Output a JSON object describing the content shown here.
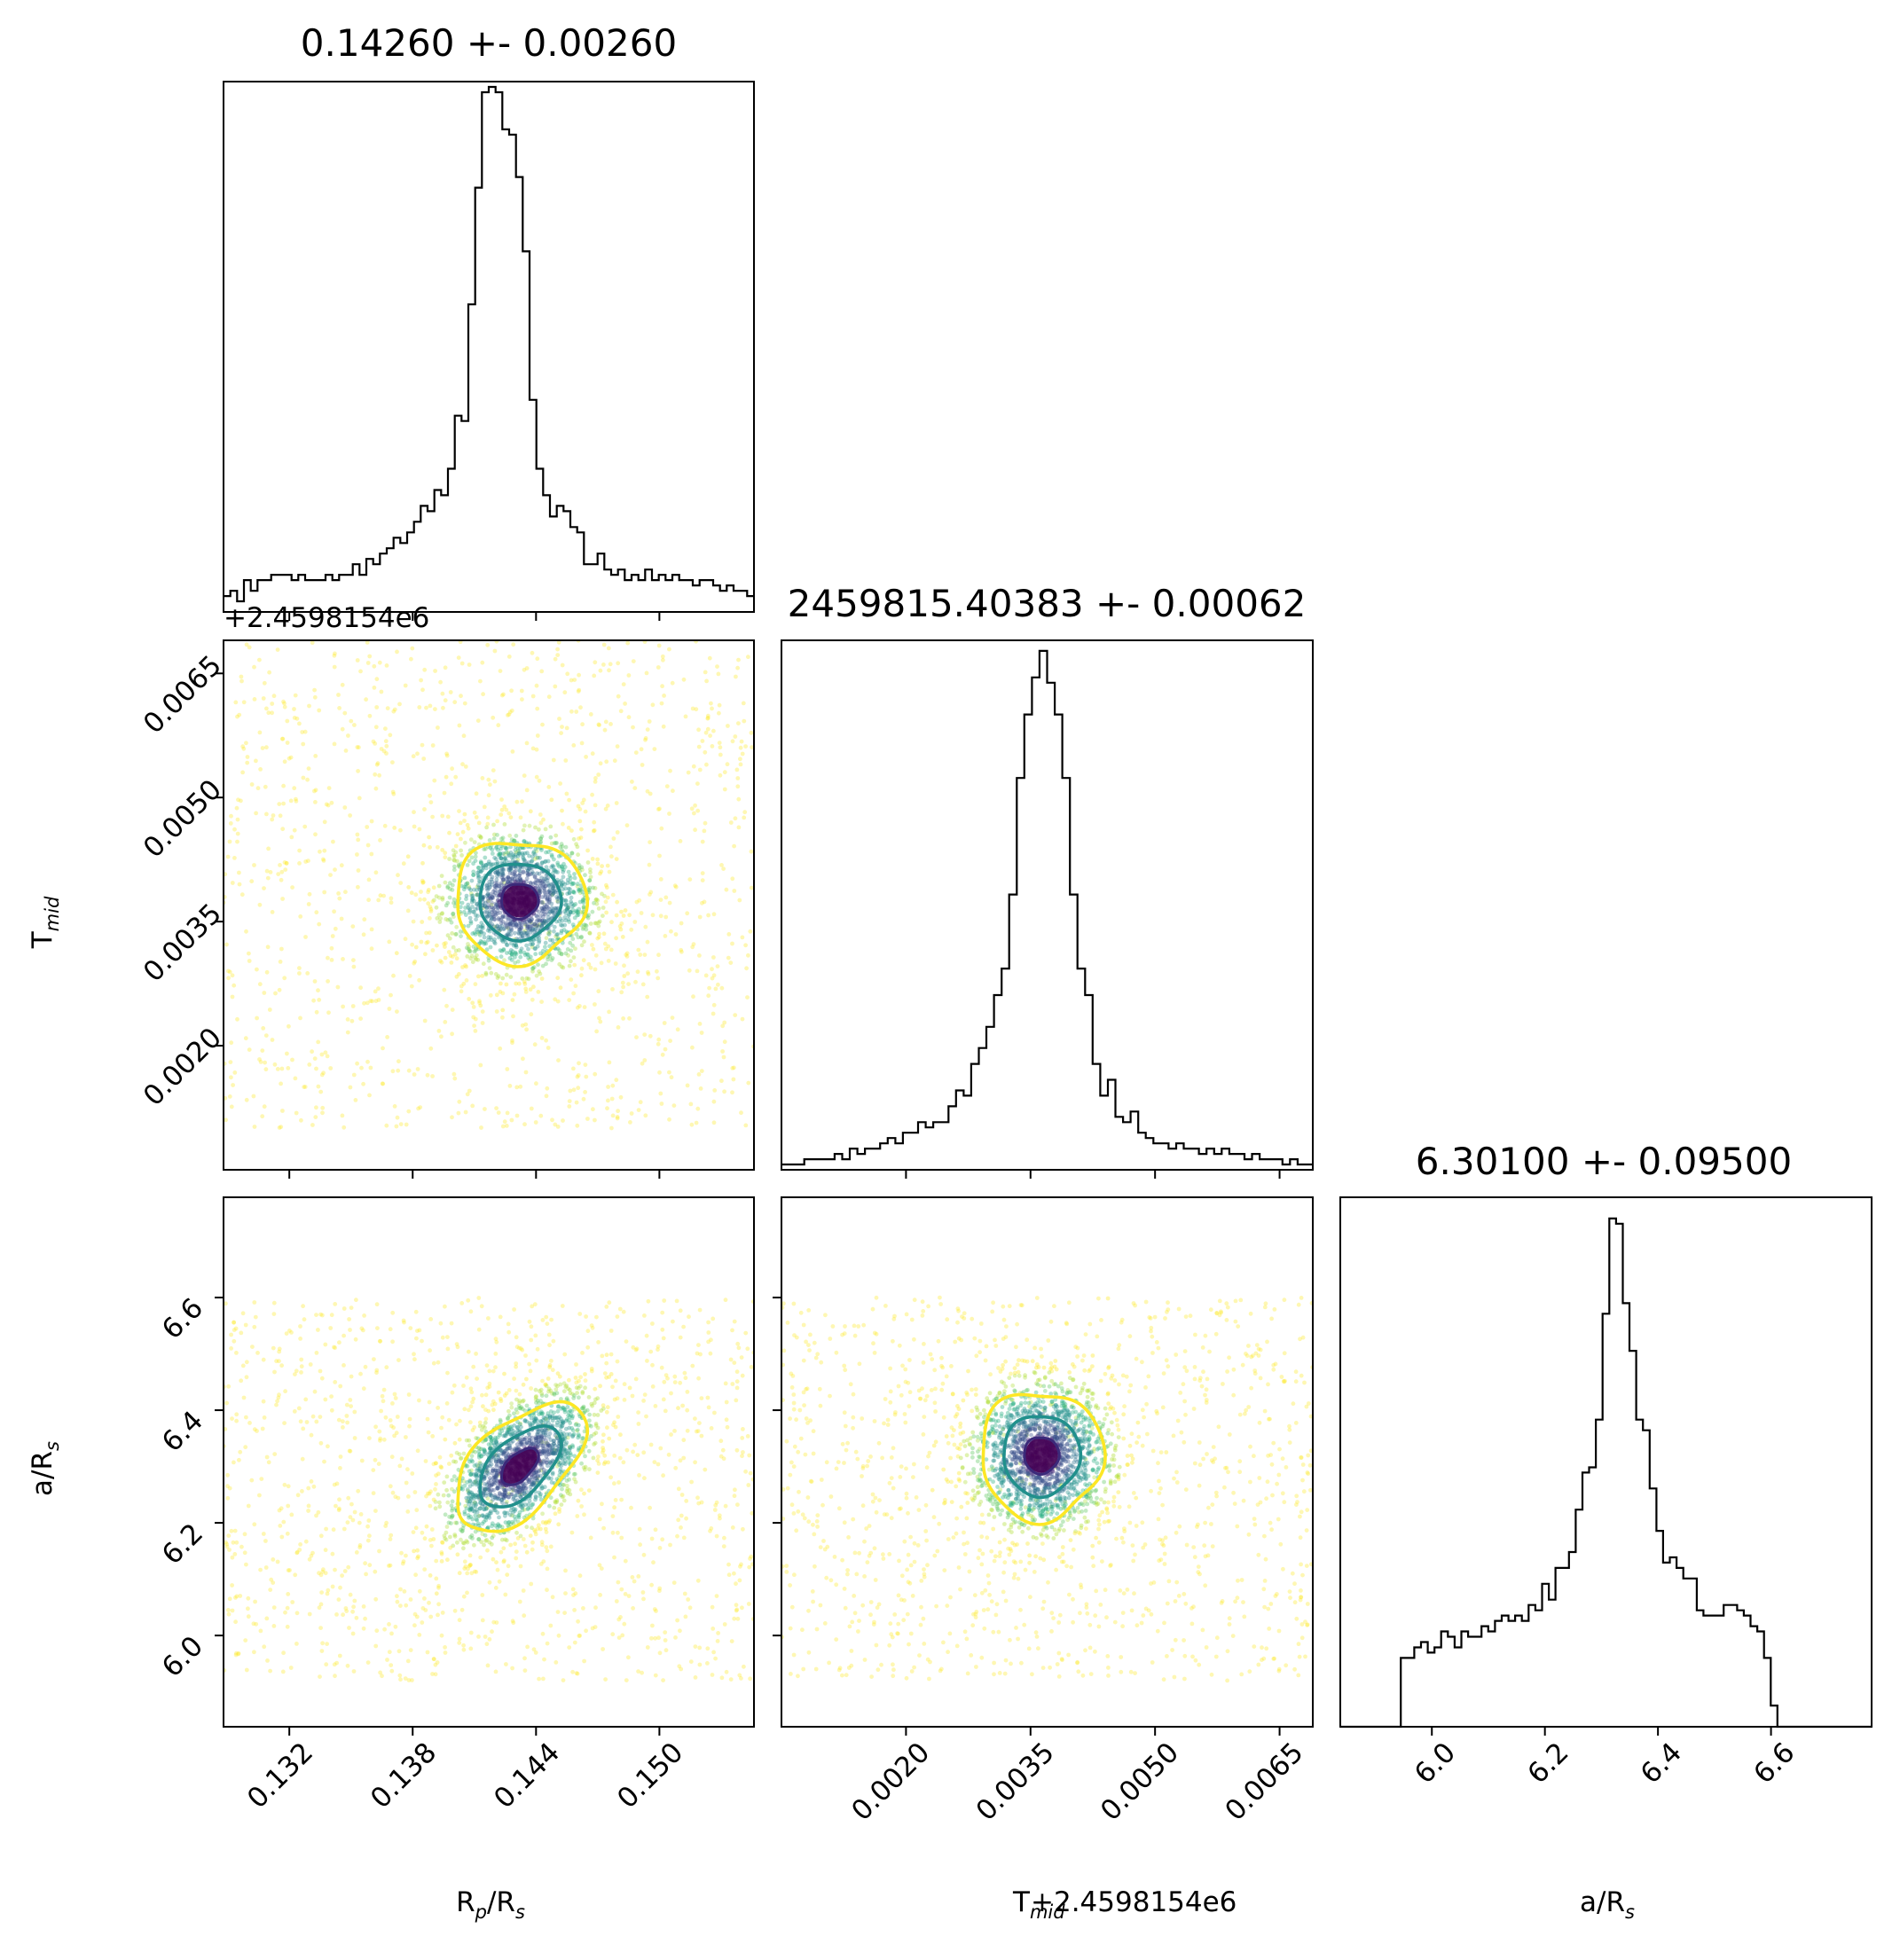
{
  "chart_data": {
    "type": "corner",
    "parameters": [
      "Rp/Rs",
      "Tmid",
      "a/Rs"
    ],
    "colors": {
      "hist_line": "#000000",
      "contour_inner": "#3b2a7a",
      "contour_mid": "#21908c",
      "contour_outer": "#fde725",
      "scatter_core": "#440154"
    },
    "titles": [
      "0.14260 +- 0.00260",
      "2459815.40383 +- 0.00062",
      "6.30100 +- 0.09500"
    ],
    "axis_labels": {
      "rp": {
        "main": "R",
        "sub": "p",
        "tail": "/R",
        "tail_sub": "s"
      },
      "tmid": {
        "main": "T",
        "sub": "mid"
      },
      "tmid_x_offset": "+2.4598154e6",
      "ars": {
        "main": "a/R",
        "sub": "s"
      }
    },
    "y_offset_text": "+2.4598154e6",
    "ranges": {
      "rp": [
        0.1288,
        0.1546
      ],
      "tmid": [
        0.0005,
        0.0069
      ],
      "ars": [
        5.838,
        6.778
      ]
    },
    "ticks": {
      "rp": {
        "values": [
          0.132,
          0.138,
          0.144,
          0.15
        ],
        "labels": [
          "0.132",
          "0.138",
          "0.144",
          "0.150"
        ]
      },
      "tmid": {
        "values": [
          0.002,
          0.0035,
          0.005,
          0.0065
        ],
        "labels": [
          "0.0020",
          "0.0035",
          "0.0050",
          "0.0065"
        ]
      },
      "ars": {
        "values": [
          6.0,
          6.2,
          6.4,
          6.6
        ],
        "labels": [
          "6.0",
          "6.2",
          "6.4",
          "6.6"
        ]
      }
    },
    "histograms": {
      "rp": {
        "peak": 0.1432,
        "heights": [
          0.03,
          0.04,
          0.02,
          0.06,
          0.04,
          0.06,
          0.06,
          0.07,
          0.07,
          0.07,
          0.06,
          0.07,
          0.06,
          0.06,
          0.06,
          0.07,
          0.06,
          0.07,
          0.07,
          0.09,
          0.07,
          0.1,
          0.09,
          0.11,
          0.12,
          0.14,
          0.13,
          0.15,
          0.17,
          0.2,
          0.19,
          0.23,
          0.22,
          0.27,
          0.37,
          0.36,
          0.58,
          0.8,
          0.98,
          0.99,
          0.98,
          0.91,
          0.9,
          0.82,
          0.68,
          0.4,
          0.27,
          0.22,
          0.18,
          0.2,
          0.19,
          0.16,
          0.15,
          0.09,
          0.09,
          0.11,
          0.08,
          0.07,
          0.08,
          0.06,
          0.07,
          0.06,
          0.08,
          0.06,
          0.07,
          0.06,
          0.07,
          0.06,
          0.06,
          0.05,
          0.06,
          0.06,
          0.05,
          0.04,
          0.05,
          0.04,
          0.04,
          0.03
        ]
      },
      "tmid": {
        "peak": 0.00363,
        "heights": [
          0.01,
          0.01,
          0.01,
          0.02,
          0.02,
          0.02,
          0.02,
          0.03,
          0.02,
          0.04,
          0.03,
          0.04,
          0.04,
          0.05,
          0.06,
          0.05,
          0.07,
          0.07,
          0.09,
          0.08,
          0.09,
          0.09,
          0.12,
          0.15,
          0.14,
          0.2,
          0.23,
          0.27,
          0.33,
          0.38,
          0.52,
          0.74,
          0.86,
          0.93,
          0.98,
          0.92,
          0.86,
          0.74,
          0.52,
          0.38,
          0.33,
          0.2,
          0.14,
          0.17,
          0.1,
          0.09,
          0.11,
          0.07,
          0.06,
          0.05,
          0.05,
          0.04,
          0.05,
          0.04,
          0.04,
          0.03,
          0.04,
          0.03,
          0.04,
          0.03,
          0.03,
          0.02,
          0.03,
          0.02,
          0.02,
          0.02,
          0.01,
          0.02,
          0.01,
          0.01
        ]
      },
      "ars": {
        "peak": 6.32,
        "heights": [
          0,
          0,
          0,
          0,
          0,
          0,
          0,
          0,
          0,
          0.13,
          0.13,
          0.15,
          0.16,
          0.14,
          0.15,
          0.18,
          0.17,
          0.15,
          0.18,
          0.17,
          0.17,
          0.19,
          0.18,
          0.2,
          0.21,
          0.2,
          0.21,
          0.2,
          0.23,
          0.22,
          0.27,
          0.24,
          0.3,
          0.3,
          0.33,
          0.41,
          0.48,
          0.49,
          0.58,
          0.78,
          0.96,
          0.95,
          0.8,
          0.71,
          0.58,
          0.56,
          0.45,
          0.37,
          0.31,
          0.32,
          0.3,
          0.28,
          0.28,
          0.22,
          0.21,
          0.21,
          0.21,
          0.23,
          0.23,
          0.22,
          0.21,
          0.19,
          0.18,
          0.13,
          0.04,
          0,
          0,
          0,
          0,
          0,
          0,
          0,
          0,
          0,
          0,
          0,
          0,
          0,
          0
        ]
      }
    },
    "joint": {
      "rp_tmid": {
        "center": [
          0.1432,
          0.00375
        ],
        "sigma": [
          0.0018,
          0.00042
        ],
        "corr": 0.0,
        "uniform_range": {
          "x": [
            0.1288,
            0.1546
          ],
          "y": [
            0.001,
            0.0069
          ]
        }
      },
      "rp_ars": {
        "center": [
          0.1432,
          6.3
        ],
        "sigma": [
          0.0018,
          0.065
        ],
        "corr": 0.55,
        "uniform_range": {
          "x": [
            0.1288,
            0.1546
          ],
          "y": [
            5.92,
            6.6
          ]
        }
      },
      "tmid_ars": {
        "center": [
          0.00363,
          6.32
        ],
        "sigma": [
          0.00042,
          0.065
        ],
        "corr": 0.0,
        "uniform_range": {
          "x": [
            0.0005,
            0.0069
          ],
          "y": [
            5.92,
            6.6
          ]
        }
      }
    },
    "contour_levels_sigma": [
      0.5,
      1.1,
      1.75
    ]
  }
}
